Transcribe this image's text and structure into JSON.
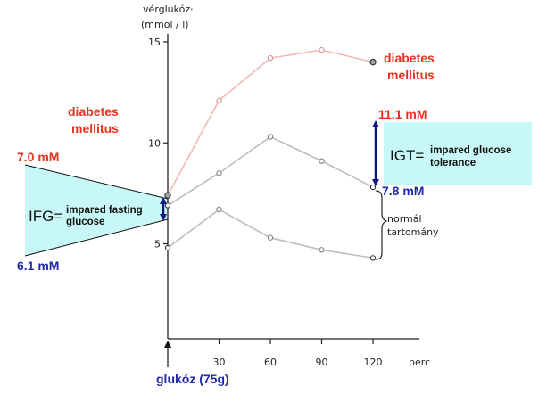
{
  "chart_data": {
    "type": "line",
    "title": "",
    "ylabel_line1": "vérglukóz·",
    "ylabel_line2": "(mmol / l)",
    "xlabel": "perc",
    "x": [
      0,
      30,
      60,
      90,
      120
    ],
    "x_tick_labels": [
      "30",
      "60",
      "90",
      "120"
    ],
    "y_tick_labels": [
      "15",
      "10",
      "5"
    ],
    "y_ticks": [
      15,
      10,
      5
    ],
    "xlim": [
      0,
      135
    ],
    "ylim": [
      0,
      16
    ],
    "grid": false,
    "series": [
      {
        "values": [
          7.4,
          12.1,
          14.2,
          14.6,
          14.0
        ]
      },
      {
        "values": [
          6.9,
          8.5,
          10.3,
          9.1,
          7.8
        ]
      },
      {
        "values": [
          4.8,
          6.7,
          5.3,
          4.7,
          4.3
        ]
      }
    ],
    "series_colors": [
      "#f5b8b4",
      "#bdbdbd",
      "#bdbdbd"
    ],
    "marker_colors": [
      "#d9928c",
      "#808080",
      "#808080"
    ],
    "annotations": {
      "dm_right_line1": "diabetes",
      "dm_right_line2": "mellitus",
      "dm_left_line1": "diabetes",
      "dm_left_line2": "mellitus",
      "igt_upper": "11.1 mM",
      "igt_lower": "7.8 mM",
      "igt_big": "IGT=",
      "igt_small_line1": "impared glucose",
      "igt_small_line2": "tolerance",
      "ifg_upper": "7.0 mM",
      "ifg_lower": "6.1 mM",
      "ifg_big": "IFG=",
      "ifg_small_line1": "impared fasting",
      "ifg_small_line2": "glucose",
      "normal_line1": "normál",
      "normal_line2": "tartomány",
      "glucose_dose": "glukóz (75g)"
    },
    "colors": {
      "red_text": "#e8321e",
      "blue_text": "#1f2aa8",
      "arrow_blue": "#0e1880",
      "box_fill": "#c8f7f7"
    }
  }
}
